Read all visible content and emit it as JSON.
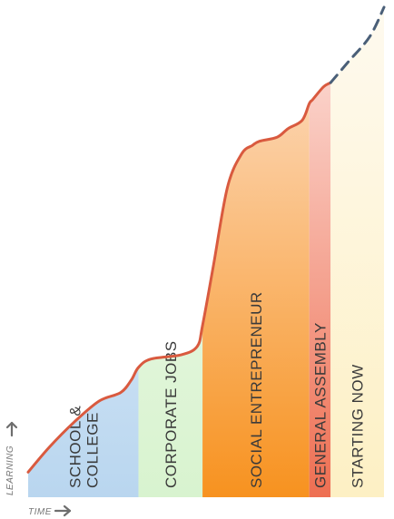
{
  "chart_data": {
    "type": "area",
    "title": "",
    "xlabel": "TIME",
    "ylabel": "LEARNING",
    "line_color": "#d95a3f",
    "projection_color": "#4a5f78",
    "phases": [
      {
        "label_lines": [
          "SCHOOL &",
          "COLLEGE"
        ],
        "start": 0.0,
        "end": 0.31,
        "color_top": "#eef5fd",
        "color_bottom": "#b9d6ef"
      },
      {
        "label_lines": [
          "CORPORATE JOBS"
        ],
        "start": 0.31,
        "end": 0.49,
        "color_top": "#f4fbf0",
        "color_bottom": "#d8f3cf"
      },
      {
        "label_lines": [
          "SOCIAL ENTREPRENEUR"
        ],
        "start": 0.49,
        "end": 0.79,
        "color_top": "#fde4d2",
        "color_bottom": "#f7921f"
      },
      {
        "label_lines": [
          "GENERAL ASSEMBLY"
        ],
        "start": 0.79,
        "end": 0.85,
        "color_top": "#fde6e2",
        "color_bottom": "#ee6f52"
      },
      {
        "label_lines": [
          "STARTING NOW"
        ],
        "start": 0.85,
        "end": 1.0,
        "color_top": "#fefaf0",
        "color_bottom": "#fdf0c4"
      }
    ],
    "learning_curve": {
      "x": [
        0.0,
        0.06,
        0.13,
        0.2,
        0.26,
        0.29,
        0.31,
        0.345,
        0.43,
        0.475,
        0.49,
        0.52,
        0.56,
        0.6,
        0.63,
        0.65,
        0.7,
        0.73,
        0.77,
        0.79,
        0.8,
        0.83,
        0.85
      ],
      "y": [
        0.06,
        0.12,
        0.18,
        0.23,
        0.25,
        0.28,
        0.31,
        0.33,
        0.34,
        0.36,
        0.41,
        0.55,
        0.74,
        0.82,
        0.84,
        0.85,
        0.86,
        0.88,
        0.9,
        0.94,
        0.95,
        0.98,
        0.99
      ]
    },
    "projection_curve": {
      "x": [
        0.85,
        0.9,
        0.96,
        1.0
      ],
      "y": [
        0.99,
        1.04,
        1.1,
        1.17
      ]
    },
    "xlim": [
      0,
      1
    ],
    "ylim": [
      0,
      1.17
    ]
  },
  "icons": {
    "learning_arrow": "arrow-up-icon",
    "time_arrow": "arrow-right-icon"
  }
}
